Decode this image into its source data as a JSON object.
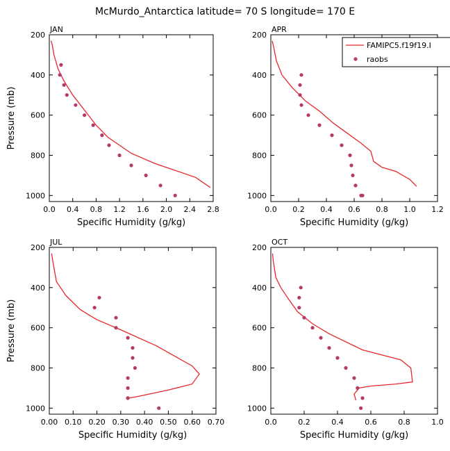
{
  "figure": {
    "title": "McMurdo_Antarctica  latitude= 70 S longitude= 170 E"
  },
  "legend": {
    "model_label": "FAMIPC5.f19f19.I",
    "obs_label": "raobs",
    "model_color": "#e8262a",
    "obs_color": "#b53a6a"
  },
  "chart_data": [
    {
      "type": "line",
      "panel": "JAN",
      "xlabel": "Specific Humidity (g/kg)",
      "ylabel": "Pressure (mb)",
      "xlim": [
        0,
        2.8
      ],
      "xticks": [
        "0.0",
        "0.4",
        "0.8",
        "1.2",
        "1.6",
        "2.0",
        "2.4",
        "2.8"
      ],
      "ylim": [
        200,
        1030
      ],
      "yticks": [
        "200",
        "400",
        "600",
        "800",
        "1000"
      ],
      "model": {
        "x": [
          0.03,
          0.05,
          0.08,
          0.15,
          0.25,
          0.4,
          0.6,
          0.8,
          1.0,
          1.15,
          1.4,
          1.8,
          2.5,
          2.75
        ],
        "y": [
          230,
          250,
          300,
          370,
          430,
          500,
          575,
          650,
          710,
          740,
          790,
          840,
          910,
          960
        ]
      },
      "obs": {
        "x": [
          0.2,
          0.18,
          0.25,
          0.3,
          0.45,
          0.6,
          0.75,
          0.9,
          1.02,
          1.2,
          1.4,
          1.65,
          1.9,
          2.15
        ],
        "y": [
          350,
          400,
          450,
          500,
          550,
          600,
          650,
          700,
          750,
          800,
          850,
          900,
          950,
          1000
        ]
      }
    },
    {
      "type": "line",
      "panel": "APR",
      "xlabel": "Specific Humidity (g/kg)",
      "ylabel": "",
      "xlim": [
        0,
        1.2
      ],
      "xticks": [
        "0.0",
        "0.2",
        "0.4",
        "0.6",
        "0.8",
        "1.0",
        "1.2"
      ],
      "ylim": [
        200,
        1030
      ],
      "yticks": [
        "200",
        "400",
        "600",
        "800",
        "1000"
      ],
      "model": {
        "x": [
          0.01,
          0.02,
          0.04,
          0.08,
          0.15,
          0.25,
          0.35,
          0.45,
          0.55,
          0.65,
          0.72,
          0.74,
          0.8,
          0.9,
          1.0,
          1.05
        ],
        "y": [
          230,
          260,
          330,
          400,
          460,
          530,
          580,
          640,
          690,
          740,
          780,
          830,
          860,
          880,
          920,
          955
        ]
      },
      "obs": {
        "x": [
          0.22,
          0.21,
          0.21,
          0.22,
          0.27,
          0.35,
          0.44,
          0.51,
          0.57,
          0.58,
          0.59,
          0.61,
          0.65,
          0.66
        ],
        "y": [
          400,
          450,
          500,
          550,
          600,
          650,
          700,
          750,
          800,
          850,
          900,
          950,
          1000,
          1000
        ]
      }
    },
    {
      "type": "line",
      "panel": "JUL",
      "xlabel": "Specific Humidity (g/kg)",
      "ylabel": "Pressure (mb)",
      "xlim": [
        0,
        0.7
      ],
      "xticks": [
        "0.00",
        "0.10",
        "0.20",
        "0.30",
        "0.40",
        "0.50",
        "0.60",
        "0.70"
      ],
      "ylim": [
        200,
        1030
      ],
      "yticks": [
        "200",
        "400",
        "600",
        "800",
        "1000"
      ],
      "model": {
        "x": [
          0.01,
          0.015,
          0.03,
          0.07,
          0.13,
          0.2,
          0.3,
          0.45,
          0.6,
          0.63,
          0.6,
          0.5,
          0.4,
          0.36,
          0.33
        ],
        "y": [
          230,
          270,
          370,
          440,
          510,
          560,
          610,
          690,
          790,
          830,
          880,
          910,
          935,
          945,
          950
        ]
      },
      "obs": {
        "x": [
          0.21,
          0.19,
          0.28,
          0.28,
          0.33,
          0.35,
          0.35,
          0.36,
          0.33,
          0.33,
          0.33,
          0.33,
          0.46
        ],
        "y": [
          450,
          500,
          550,
          600,
          650,
          700,
          750,
          800,
          850,
          900,
          950,
          950,
          1000
        ]
      }
    },
    {
      "type": "line",
      "panel": "OCT",
      "xlabel": "Specific Humidity (g/kg)",
      "ylabel": "",
      "xlim": [
        0,
        1.0
      ],
      "xticks": [
        "0.0",
        "0.2",
        "0.4",
        "0.6",
        "0.8",
        "1.0"
      ],
      "ylim": [
        200,
        1030
      ],
      "yticks": [
        "200",
        "400",
        "600",
        "800",
        "1000"
      ],
      "model": {
        "x": [
          0.01,
          0.015,
          0.03,
          0.06,
          0.1,
          0.16,
          0.25,
          0.35,
          0.55,
          0.78,
          0.84,
          0.85,
          0.75,
          0.6,
          0.53,
          0.5,
          0.51
        ],
        "y": [
          230,
          270,
          350,
          400,
          450,
          520,
          580,
          630,
          710,
          760,
          800,
          870,
          880,
          890,
          900,
          930,
          960
        ]
      },
      "obs": {
        "x": [
          0.18,
          0.17,
          0.17,
          0.2,
          0.25,
          0.3,
          0.35,
          0.4,
          0.45,
          0.5,
          0.52,
          0.55,
          0.54
        ],
        "y": [
          400,
          450,
          500,
          550,
          600,
          650,
          700,
          750,
          800,
          850,
          900,
          950,
          1000
        ]
      }
    }
  ]
}
